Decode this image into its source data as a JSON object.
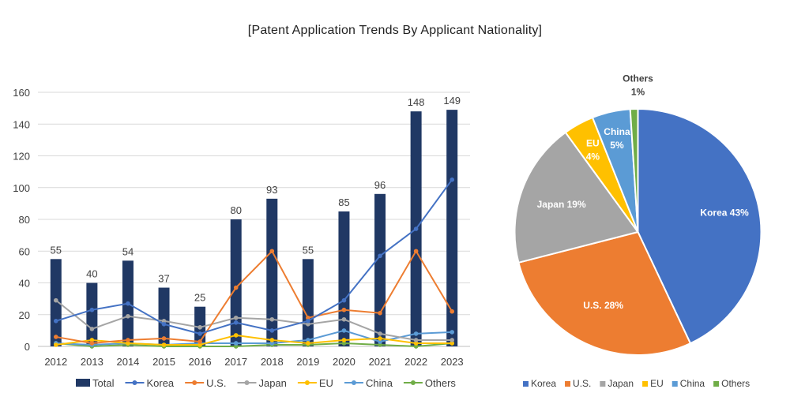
{
  "title": "[Patent Application Trends By Applicant Nationality]",
  "chart_data": [
    {
      "type": "bar+line",
      "categories": [
        "2012",
        "2013",
        "2014",
        "2015",
        "2016",
        "2017",
        "2018",
        "2019",
        "2020",
        "2021",
        "2022",
        "2023"
      ],
      "ylim": [
        0,
        160
      ],
      "yticks": [
        0,
        20,
        40,
        60,
        80,
        100,
        120,
        140,
        160
      ],
      "gridlines": true,
      "legend_position": "bottom",
      "bar_series": {
        "name": "Total",
        "color": "#203864",
        "values": [
          55,
          40,
          54,
          37,
          25,
          80,
          93,
          55,
          85,
          96,
          148,
          149
        ]
      },
      "line_series": [
        {
          "name": "Korea",
          "color": "#4472C4",
          "values": [
            16,
            23,
            27,
            14,
            8,
            15,
            10,
            16,
            29,
            57,
            74,
            105
          ]
        },
        {
          "name": "U.S.",
          "color": "#ED7D31",
          "values": [
            6,
            2,
            4,
            5,
            3,
            37,
            60,
            18,
            23,
            21,
            60,
            22
          ]
        },
        {
          "name": "Japan",
          "color": "#A5A5A5",
          "values": [
            29,
            11,
            19,
            16,
            12,
            18,
            17,
            14,
            17,
            8,
            4,
            4
          ]
        },
        {
          "name": "EU",
          "color": "#FFC000",
          "values": [
            1,
            4,
            2,
            1,
            1,
            7,
            4,
            2,
            4,
            5,
            2,
            2
          ]
        },
        {
          "name": "China",
          "color": "#5B9BD5",
          "values": [
            2,
            1,
            2,
            1,
            2,
            2,
            2,
            4,
            10,
            3,
            8,
            9
          ]
        },
        {
          "name": "Others",
          "color": "#70AD47",
          "values": [
            2,
            0,
            1,
            0,
            0,
            0,
            1,
            1,
            2,
            1,
            0,
            2
          ]
        }
      ]
    },
    {
      "type": "pie",
      "slices": [
        {
          "name": "Korea",
          "value": 43,
          "label": "Korea 43%",
          "color": "#4472C4",
          "label_color": "#ffffff"
        },
        {
          "name": "U.S.",
          "value": 28,
          "label": "U.S. 28%",
          "color": "#ED7D31",
          "label_color": "#ffffff"
        },
        {
          "name": "Japan",
          "value": 19,
          "label": "Japan 19%",
          "color": "#A5A5A5",
          "label_color": "#ffffff"
        },
        {
          "name": "EU",
          "value": 4,
          "label": "EU\n4%",
          "color": "#FFC000",
          "label_color": "#ffffff"
        },
        {
          "name": "China",
          "value": 5,
          "label": "China\n5%",
          "color": "#5B9BD5",
          "label_color": "#ffffff"
        },
        {
          "name": "Others",
          "value": 1,
          "label": "Others\n1%",
          "color": "#70AD47",
          "label_color": "#404040"
        }
      ],
      "legend_position": "bottom"
    }
  ]
}
